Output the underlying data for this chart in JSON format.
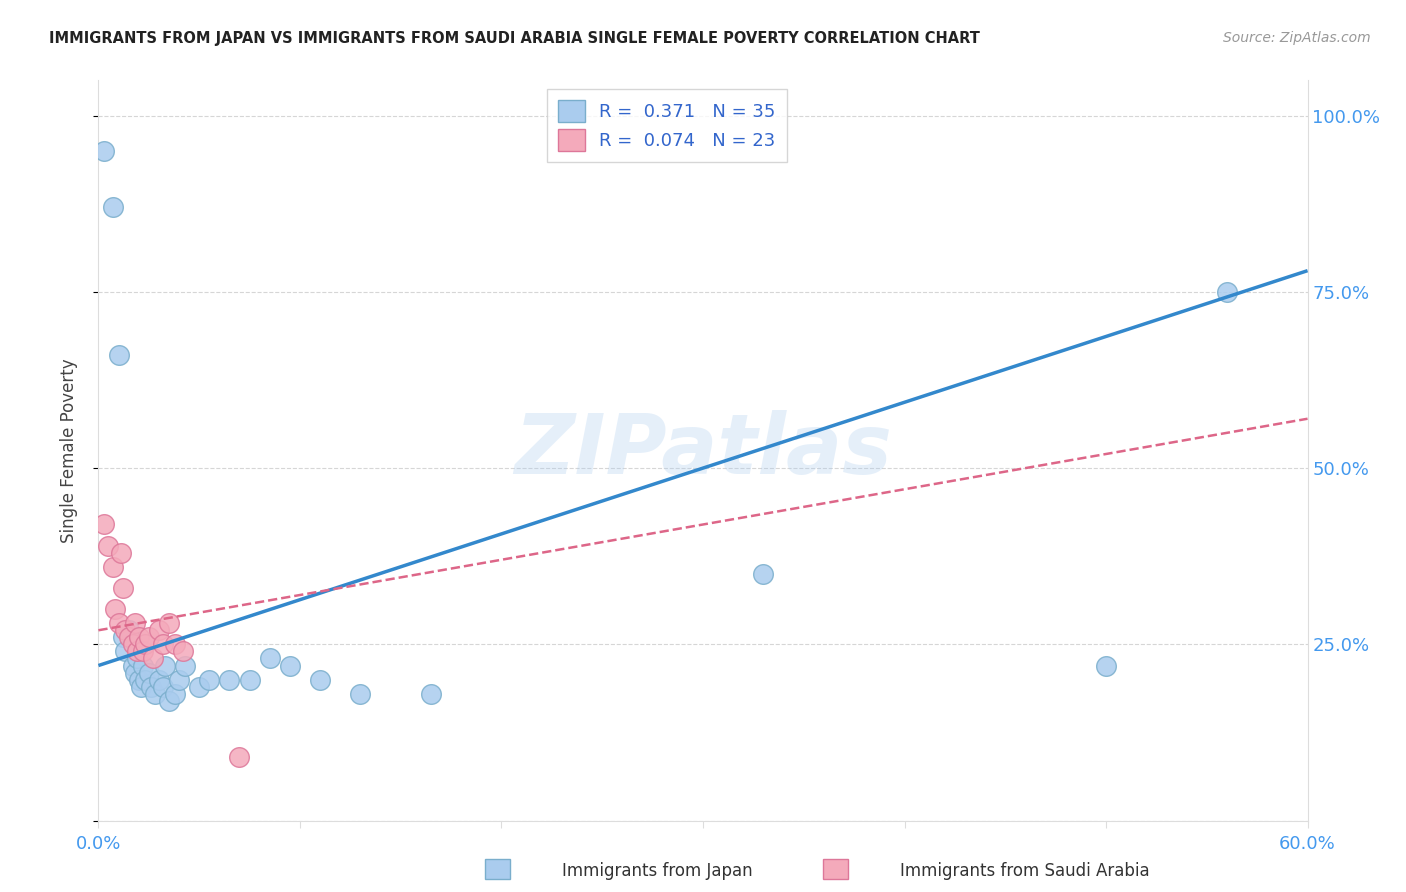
{
  "title": "IMMIGRANTS FROM JAPAN VS IMMIGRANTS FROM SAUDI ARABIA SINGLE FEMALE POVERTY CORRELATION CHART",
  "source": "Source: ZipAtlas.com",
  "ylabel": "Single Female Poverty",
  "xlim": [
    0.0,
    0.6
  ],
  "ylim": [
    0.0,
    1.05
  ],
  "japan_color": "#aaccee",
  "japan_edge": "#7aaecc",
  "saudi_color": "#f4aabb",
  "saudi_edge": "#dd7799",
  "japan_R": 0.371,
  "japan_N": 35,
  "saudi_R": 0.074,
  "saudi_N": 23,
  "japan_line_color": "#3388cc",
  "saudi_line_color": "#dd6688",
  "watermark": "ZIPatlas",
  "legend_label_japan": "Immigrants from Japan",
  "legend_label_saudi": "Immigrants from Saudi Arabia",
  "japan_x": [
    0.003,
    0.007,
    0.01,
    0.012,
    0.013,
    0.015,
    0.017,
    0.018,
    0.019,
    0.02,
    0.021,
    0.022,
    0.023,
    0.025,
    0.026,
    0.028,
    0.03,
    0.032,
    0.033,
    0.035,
    0.038,
    0.04,
    0.043,
    0.05,
    0.055,
    0.065,
    0.075,
    0.085,
    0.095,
    0.11,
    0.13,
    0.165,
    0.33,
    0.5,
    0.56
  ],
  "japan_y": [
    0.95,
    0.87,
    0.66,
    0.26,
    0.24,
    0.27,
    0.22,
    0.21,
    0.23,
    0.2,
    0.19,
    0.22,
    0.2,
    0.21,
    0.19,
    0.18,
    0.2,
    0.19,
    0.22,
    0.17,
    0.18,
    0.2,
    0.22,
    0.19,
    0.2,
    0.2,
    0.2,
    0.23,
    0.22,
    0.2,
    0.18,
    0.18,
    0.35,
    0.22,
    0.75
  ],
  "saudi_x": [
    0.003,
    0.005,
    0.007,
    0.008,
    0.01,
    0.011,
    0.012,
    0.013,
    0.015,
    0.017,
    0.018,
    0.019,
    0.02,
    0.022,
    0.023,
    0.025,
    0.027,
    0.03,
    0.032,
    0.035,
    0.038,
    0.042,
    0.07
  ],
  "saudi_y": [
    0.42,
    0.39,
    0.36,
    0.3,
    0.28,
    0.38,
    0.33,
    0.27,
    0.26,
    0.25,
    0.28,
    0.24,
    0.26,
    0.24,
    0.25,
    0.26,
    0.23,
    0.27,
    0.25,
    0.28,
    0.25,
    0.24,
    0.09
  ],
  "japan_line_x": [
    0.0,
    0.6
  ],
  "japan_line_y": [
    0.22,
    0.78
  ],
  "saudi_line_x": [
    0.0,
    0.6
  ],
  "saudi_line_y": [
    0.27,
    0.57
  ]
}
